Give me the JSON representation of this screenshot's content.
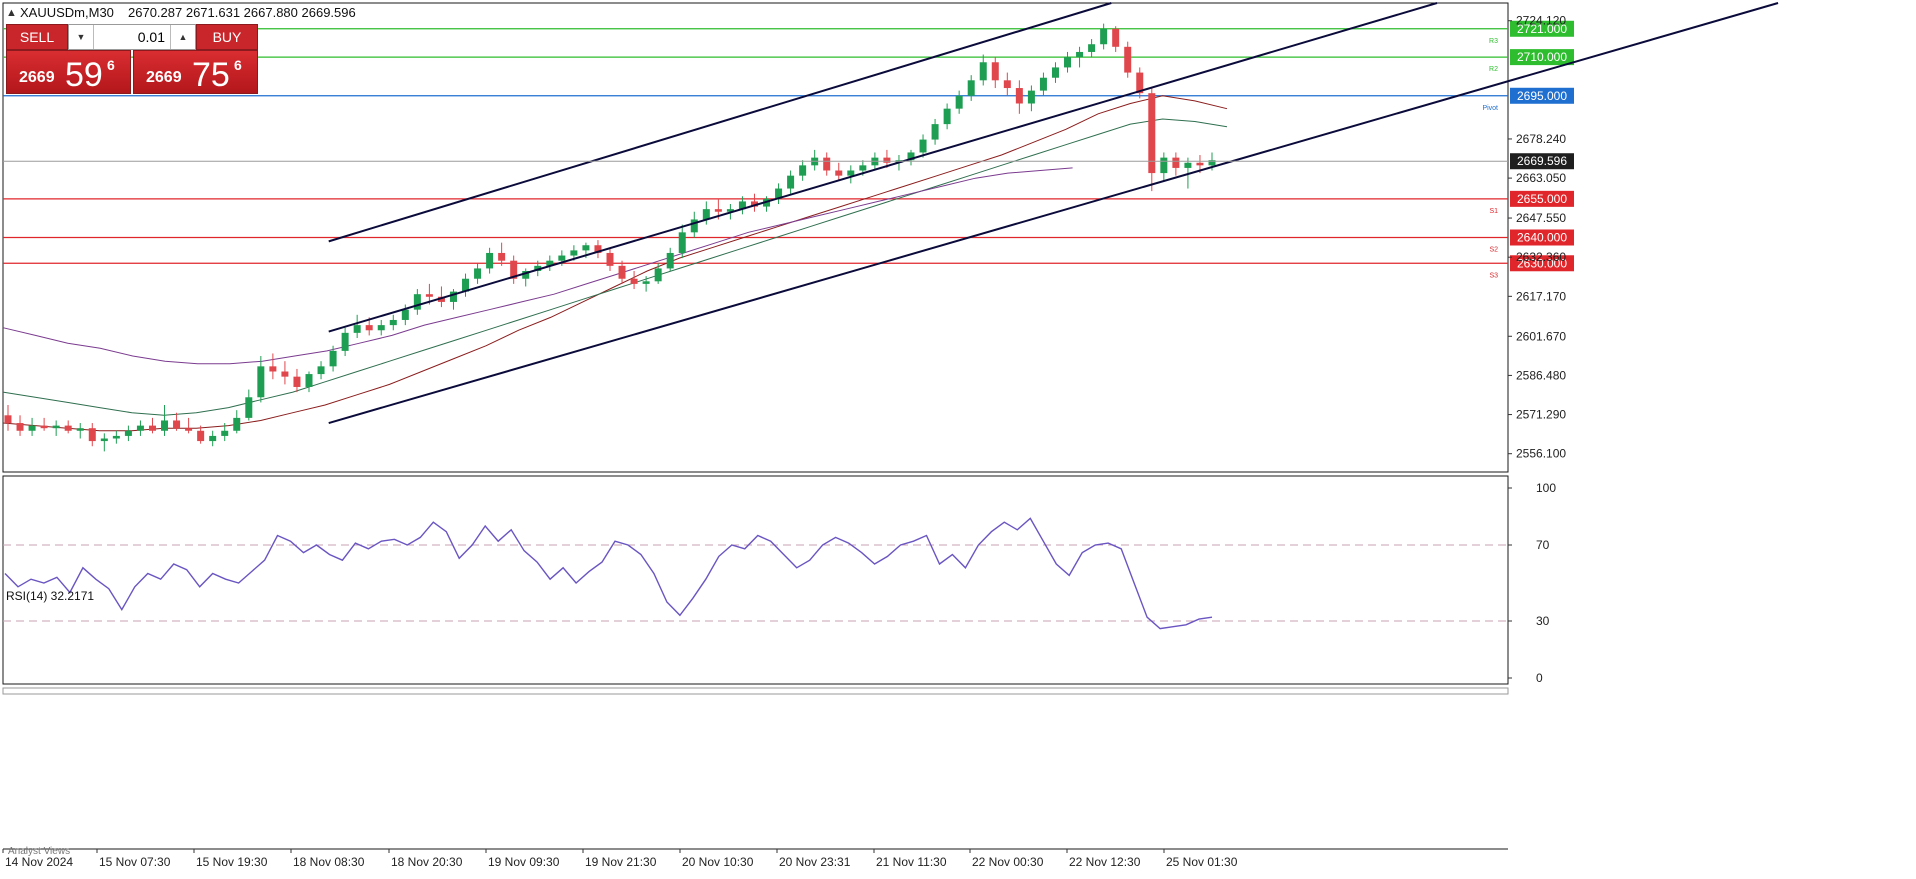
{
  "header": {
    "caret_icon": "triangle-up-icon",
    "symbol": "XAUUSDm,M30",
    "ohlc": "2670.287 2671.631 2667.880 2669.596"
  },
  "trade_panel": {
    "sell_label": "SELL",
    "buy_label": "BUY",
    "lot_value": "0.01",
    "sell_price": {
      "small": "2669",
      "big": "59",
      "sup": "6"
    },
    "buy_price": {
      "small": "2669",
      "big": "75",
      "sup": "6"
    },
    "color": "#c9262b"
  },
  "chart_data": [
    {
      "type": "candlestick",
      "ylim": [
        2549.0,
        2731.0
      ],
      "y_ticks": [
        "2724.120",
        "2678.240",
        "2663.050",
        "2647.550",
        "2632.360",
        "2617.170",
        "2601.670",
        "2586.480",
        "2571.290",
        "2556.100"
      ],
      "x_tick_labels": [
        "14 Nov 2024",
        "15 Nov 07:30",
        "15 Nov 19:30",
        "18 Nov 08:30",
        "18 Nov 20:30",
        "19 Nov 09:30",
        "19 Nov 21:30",
        "20 Nov 10:30",
        "20 Nov 23:31",
        "21 Nov 11:30",
        "22 Nov 00:30",
        "22 Nov 12:30",
        "25 Nov 01:30"
      ],
      "current_price": {
        "value": 2669.596,
        "label": "2669.596"
      },
      "levels": [
        {
          "label": "2721.000",
          "value": 2721.0,
          "tag": "R3",
          "color": "#2ebd2e"
        },
        {
          "label": "2710.000",
          "value": 2710.0,
          "tag": "R2",
          "color": "#2ebd2e"
        },
        {
          "label": "2695.000",
          "value": 2695.0,
          "tag": "Pivot",
          "color": "#1f6fd1"
        },
        {
          "label": "2655.000",
          "value": 2655.0,
          "tag": "S1",
          "color": "#e0262b"
        },
        {
          "label": "2640.000",
          "value": 2640.0,
          "tag": "S2",
          "color": "#e0262b"
        },
        {
          "label": "2630.000",
          "value": 2630.0,
          "tag": "S3",
          "color": "#e0262b"
        }
      ],
      "channel_lines": [
        {
          "from": {
            "bar": 0.17,
            "price": 2638.5
          },
          "to": {
            "bar": 0.58,
            "price": 2731.0
          }
        },
        {
          "from": {
            "bar": 0.17,
            "price": 2603.5
          },
          "to": {
            "bar": 0.75,
            "price": 2731.0
          }
        },
        {
          "from": {
            "bar": 0.17,
            "price": 2568.0
          },
          "to": {
            "bar": 0.928,
            "price": 2731.0
          }
        }
      ],
      "ohlc": [
        [
          2571,
          2575,
          2565,
          2568
        ],
        [
          2568,
          2571,
          2563,
          2565
        ],
        [
          2565,
          2570,
          2563,
          2567
        ],
        [
          2567,
          2570,
          2565,
          2566
        ],
        [
          2566,
          2569,
          2563,
          2567
        ],
        [
          2567,
          2569,
          2564,
          2565
        ],
        [
          2565,
          2568,
          2562,
          2566
        ],
        [
          2566,
          2568,
          2559,
          2561
        ],
        [
          2561,
          2564,
          2557,
          2562
        ],
        [
          2562,
          2565,
          2560,
          2563
        ],
        [
          2563,
          2567,
          2561,
          2565
        ],
        [
          2565,
          2569,
          2563,
          2567
        ],
        [
          2567,
          2570,
          2564,
          2565
        ],
        [
          2565,
          2575,
          2563,
          2569
        ],
        [
          2569,
          2572,
          2565,
          2566
        ],
        [
          2566,
          2570,
          2564,
          2565
        ],
        [
          2565,
          2567,
          2560,
          2561
        ],
        [
          2561,
          2565,
          2559,
          2563
        ],
        [
          2563,
          2568,
          2561,
          2565
        ],
        [
          2565,
          2573,
          2564,
          2570
        ],
        [
          2570,
          2581,
          2569,
          2578
        ],
        [
          2578,
          2594,
          2576,
          2590
        ],
        [
          2590,
          2595,
          2585,
          2588
        ],
        [
          2588,
          2592,
          2583,
          2586
        ],
        [
          2586,
          2589,
          2580,
          2582
        ],
        [
          2582,
          2588,
          2580,
          2587
        ],
        [
          2587,
          2592,
          2585,
          2590
        ],
        [
          2590,
          2598,
          2588,
          2596
        ],
        [
          2596,
          2605,
          2594,
          2603
        ],
        [
          2603,
          2610,
          2601,
          2606
        ],
        [
          2606,
          2609,
          2602,
          2604
        ],
        [
          2604,
          2608,
          2602,
          2606
        ],
        [
          2606,
          2610,
          2604,
          2608
        ],
        [
          2608,
          2614,
          2606,
          2612
        ],
        [
          2612,
          2620,
          2610,
          2618
        ],
        [
          2618,
          2622,
          2614,
          2617
        ],
        [
          2617,
          2621,
          2613,
          2615
        ],
        [
          2615,
          2620,
          2612,
          2619
        ],
        [
          2619,
          2626,
          2617,
          2624
        ],
        [
          2624,
          2630,
          2622,
          2628
        ],
        [
          2628,
          2636,
          2626,
          2634
        ],
        [
          2634,
          2638,
          2629,
          2631
        ],
        [
          2631,
          2633,
          2622,
          2624
        ],
        [
          2624,
          2628,
          2621,
          2627
        ],
        [
          2627,
          2631,
          2625,
          2629
        ],
        [
          2629,
          2633,
          2627,
          2631
        ],
        [
          2631,
          2635,
          2629,
          2633
        ],
        [
          2633,
          2637,
          2631,
          2635
        ],
        [
          2635,
          2638,
          2632,
          2637
        ],
        [
          2637,
          2639,
          2632,
          2634
        ],
        [
          2634,
          2636,
          2627,
          2629
        ],
        [
          2629,
          2631,
          2622,
          2624
        ],
        [
          2624,
          2627,
          2620,
          2622
        ],
        [
          2622,
          2625,
          2619,
          2623
        ],
        [
          2623,
          2630,
          2622,
          2628
        ],
        [
          2628,
          2636,
          2627,
          2634
        ],
        [
          2634,
          2645,
          2632,
          2642
        ],
        [
          2642,
          2650,
          2640,
          2647
        ],
        [
          2647,
          2654,
          2645,
          2651
        ],
        [
          2651,
          2655,
          2647,
          2650
        ],
        [
          2650,
          2653,
          2647,
          2651
        ],
        [
          2651,
          2656,
          2649,
          2654
        ],
        [
          2654,
          2657,
          2650,
          2652
        ],
        [
          2652,
          2656,
          2650,
          2655
        ],
        [
          2655,
          2661,
          2653,
          2659
        ],
        [
          2659,
          2666,
          2657,
          2664
        ],
        [
          2664,
          2670,
          2662,
          2668
        ],
        [
          2668,
          2674,
          2666,
          2671
        ],
        [
          2671,
          2673,
          2664,
          2666
        ],
        [
          2666,
          2669,
          2662,
          2664
        ],
        [
          2664,
          2668,
          2661,
          2666
        ],
        [
          2666,
          2670,
          2664,
          2668
        ],
        [
          2668,
          2673,
          2666,
          2671
        ],
        [
          2671,
          2674,
          2667,
          2669
        ],
        [
          2669,
          2672,
          2666,
          2670
        ],
        [
          2670,
          2674,
          2668,
          2673
        ],
        [
          2673,
          2680,
          2671,
          2678
        ],
        [
          2678,
          2686,
          2676,
          2684
        ],
        [
          2684,
          2692,
          2682,
          2690
        ],
        [
          2690,
          2697,
          2688,
          2695
        ],
        [
          2695,
          2703,
          2693,
          2701
        ],
        [
          2701,
          2711,
          2699,
          2708
        ],
        [
          2708,
          2710,
          2698,
          2701
        ],
        [
          2701,
          2704,
          2695,
          2698
        ],
        [
          2698,
          2701,
          2688,
          2692
        ],
        [
          2692,
          2699,
          2689,
          2697
        ],
        [
          2697,
          2704,
          2695,
          2702
        ],
        [
          2702,
          2708,
          2700,
          2706
        ],
        [
          2706,
          2712,
          2704,
          2710
        ],
        [
          2710,
          2714,
          2706,
          2712
        ],
        [
          2712,
          2717,
          2710,
          2715
        ],
        [
          2715,
          2723,
          2713,
          2721
        ],
        [
          2721,
          2722,
          2712,
          2714
        ],
        [
          2714,
          2716,
          2702,
          2704
        ],
        [
          2704,
          2706,
          2694,
          2696
        ],
        [
          2696,
          2698,
          2658,
          2665
        ],
        [
          2665,
          2673,
          2662,
          2671
        ],
        [
          2671,
          2673,
          2664,
          2667
        ],
        [
          2667,
          2671,
          2659,
          2669
        ],
        [
          2669,
          2672,
          2665,
          2668
        ],
        [
          2668,
          2673,
          2666,
          2670
        ]
      ],
      "moving_averages": [
        {
          "color": "#8b1d1d",
          "values": [
            2568,
            2567,
            2566,
            2565,
            2565,
            2566,
            2566,
            2567,
            2569,
            2572,
            2575,
            2579,
            2583,
            2588,
            2593,
            2598,
            2604,
            2609,
            2615,
            2621,
            2627,
            2632,
            2636,
            2640,
            2644,
            2648,
            2652,
            2656,
            2660,
            2664,
            2668,
            2672,
            2677,
            2682,
            2688,
            2692,
            2695,
            2693,
            2690
          ]
        },
        {
          "color": "#2f6f4f",
          "values": [
            2580,
            2578,
            2576,
            2574,
            2572,
            2571,
            2572,
            2574,
            2577,
            2580,
            2584,
            2588,
            2592,
            2596,
            2600,
            2604,
            2608,
            2612,
            2616,
            2620,
            2624,
            2628,
            2632,
            2636,
            2640,
            2644,
            2648,
            2652,
            2656,
            2660,
            2664,
            2668,
            2672,
            2676,
            2680,
            2684,
            2686,
            2685,
            2683
          ]
        },
        {
          "color": "#7b3b8f",
          "values": [
            2605,
            2602,
            2599,
            2597,
            2594,
            2592,
            2591,
            2591,
            2592,
            2594,
            2596,
            2599,
            2602,
            2606,
            2609,
            2612,
            2615,
            2618,
            2622,
            2626,
            2630,
            2634,
            2638,
            2642,
            2645,
            2648,
            2651,
            2654,
            2657,
            2660,
            2663,
            2665,
            2666,
            2667
          ]
        }
      ]
    },
    {
      "type": "line",
      "title": "RSI(14) 32.2171",
      "ylim": [
        0,
        100
      ],
      "y_ticks": [
        "100",
        "70",
        "30",
        "0"
      ],
      "reference_levels": [
        70,
        30
      ],
      "series": [
        {
          "values": [
            55,
            48,
            52,
            50,
            53,
            45,
            58,
            52,
            47,
            36,
            48,
            55,
            52,
            60,
            57,
            48,
            55,
            52,
            50,
            56,
            62,
            75,
            72,
            66,
            70,
            65,
            62,
            71,
            68,
            72,
            73,
            70,
            74,
            82,
            77,
            63,
            70,
            80,
            72,
            78,
            67,
            61,
            52,
            58,
            50,
            56,
            61,
            72,
            70,
            65,
            55,
            40,
            33,
            42,
            52,
            64,
            70,
            68,
            75,
            72,
            65,
            58,
            62,
            70,
            74,
            71,
            66,
            60,
            64,
            70,
            72,
            75,
            60,
            65,
            58,
            70,
            77,
            82,
            78,
            84,
            72,
            60,
            54,
            66,
            70,
            71,
            68,
            50,
            32,
            26,
            27,
            28,
            31,
            32
          ]
        }
      ]
    }
  ],
  "footer": {
    "tab_label": "Analyst Views"
  }
}
